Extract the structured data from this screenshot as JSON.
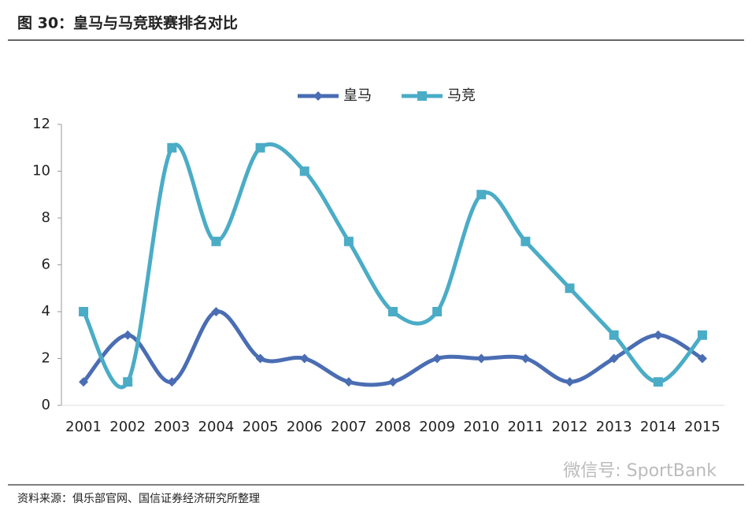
{
  "chart_data": {
    "type": "line",
    "title": "图 30：皇马与马竞联赛排名对比",
    "categories": [
      "2001",
      "2002",
      "2003",
      "2004",
      "2005",
      "2006",
      "2007",
      "2008",
      "2009",
      "2010",
      "2011",
      "2012",
      "2013",
      "2014",
      "2015"
    ],
    "series": [
      {
        "name": "皇马",
        "color": "#4a6db3",
        "marker": "diamond",
        "values": [
          1,
          3,
          1,
          4,
          2,
          2,
          1,
          1,
          2,
          2,
          2,
          1,
          2,
          3,
          2
        ]
      },
      {
        "name": "马竞",
        "color": "#4bacc6",
        "marker": "square",
        "values": [
          4,
          1,
          11,
          7,
          11,
          10,
          7,
          4,
          4,
          9,
          7,
          5,
          3,
          1,
          3
        ]
      }
    ],
    "ylim": [
      0,
      12
    ],
    "yticks": [
      0,
      2,
      4,
      6,
      8,
      10,
      12
    ],
    "grid": false,
    "smooth": true,
    "legend": "top",
    "source": "资料来源：俱乐部官网、国信证券经济研究所整理",
    "watermark": "微信号: SportBank"
  }
}
